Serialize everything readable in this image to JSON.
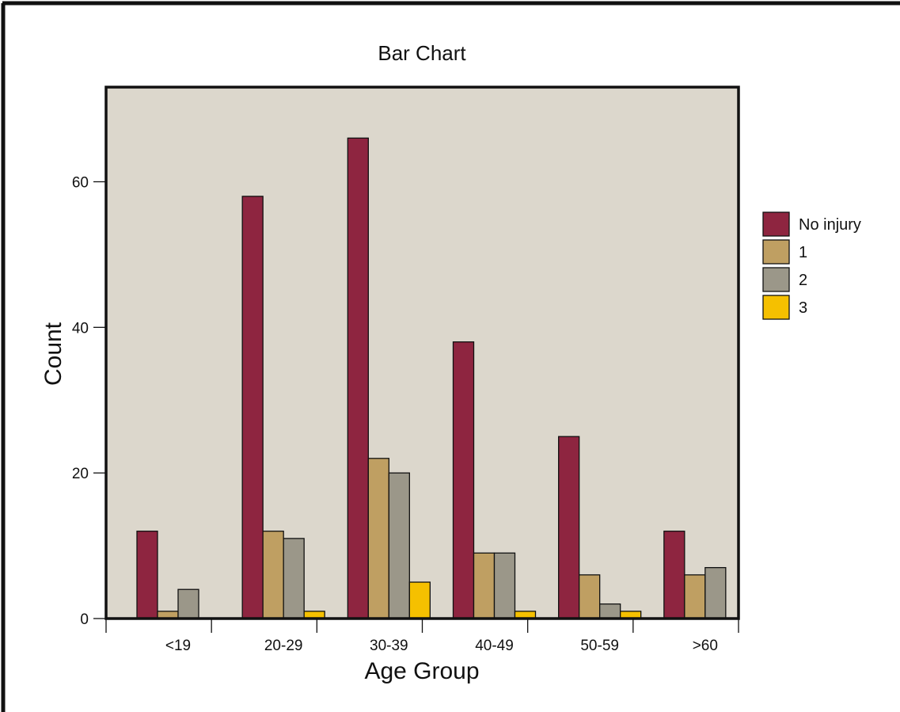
{
  "chart_data": {
    "type": "bar",
    "title": "Bar Chart",
    "xlabel": "Age Group",
    "ylabel": "Count",
    "categories": [
      "<19",
      "20-29",
      "30-39",
      "40-49",
      "50-59",
      ">60"
    ],
    "yticks": [
      0,
      20,
      40,
      60
    ],
    "ylim": [
      0,
      73
    ],
    "legend_position": "right",
    "plot_background": "#dcd7cc",
    "grid": false,
    "series": [
      {
        "name": "No injury",
        "color": "#8e2540",
        "values": [
          12,
          58,
          66,
          38,
          25,
          12
        ]
      },
      {
        "name": "1",
        "color": "#bf9f62",
        "values": [
          1,
          12,
          22,
          9,
          6,
          6
        ]
      },
      {
        "name": "2",
        "color": "#9b9789",
        "values": [
          4,
          11,
          20,
          9,
          2,
          7
        ]
      },
      {
        "name": "3",
        "color": "#f5c000",
        "values": [
          0,
          1,
          5,
          1,
          1,
          0
        ]
      }
    ]
  }
}
